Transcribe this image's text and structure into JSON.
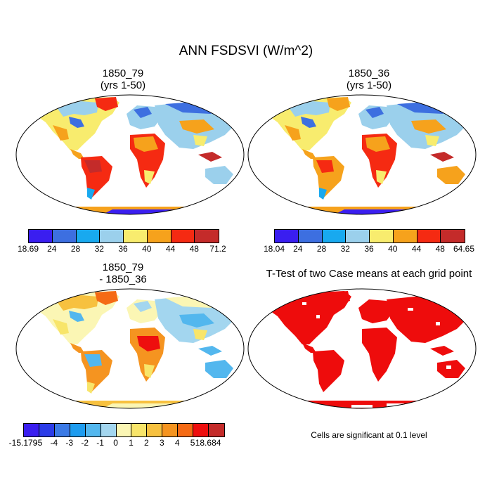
{
  "figure": {
    "title": "ANN FSDSVI (W/m^2)"
  },
  "panels": [
    {
      "title_line1": "1850_79",
      "title_line2": "(yrs 1-50)",
      "colorbar": {
        "colors": [
          "#3a1ef0",
          "#3d6fe0",
          "#18a9ef",
          "#9bd0ec",
          "#f8ec6e",
          "#f6a21c",
          "#f52a12",
          "#c42b2a"
        ],
        "labels": [
          "18.69",
          "24",
          "28",
          "32",
          "36",
          "40",
          "44",
          "48",
          "71.2"
        ]
      }
    },
    {
      "title_line1": "1850_36",
      "title_line2": "(yrs 1-50)",
      "colorbar": {
        "colors": [
          "#3a1ef0",
          "#3d6fe0",
          "#18a9ef",
          "#9bd0ec",
          "#f8ec6e",
          "#f6a21c",
          "#f52a12",
          "#c42b2a"
        ],
        "labels": [
          "18.04",
          "24",
          "28",
          "32",
          "36",
          "40",
          "44",
          "48",
          "64.65"
        ]
      }
    },
    {
      "title_line1": "1850_79",
      "title_line2": "- 1850_36",
      "colorbar": {
        "colors": [
          "#3a1ef0",
          "#2b3ce8",
          "#3b7ae6",
          "#1e9cef",
          "#53b7ee",
          "#a3d6ef",
          "#fbf6b4",
          "#f8e56a",
          "#f7c13f",
          "#f59420",
          "#f56a14",
          "#ee0e0e",
          "#c42b2a"
        ],
        "labels": [
          "-15.179",
          "-5",
          "-4",
          "-3",
          "-2",
          "-1",
          "0",
          "1",
          "2",
          "3",
          "4",
          "5",
          "18.684"
        ]
      }
    },
    {
      "title": "T-Test of two Case means at each grid point",
      "note": "Cells are significant at 0.1 level",
      "color": "#ee0c0c"
    }
  ]
}
